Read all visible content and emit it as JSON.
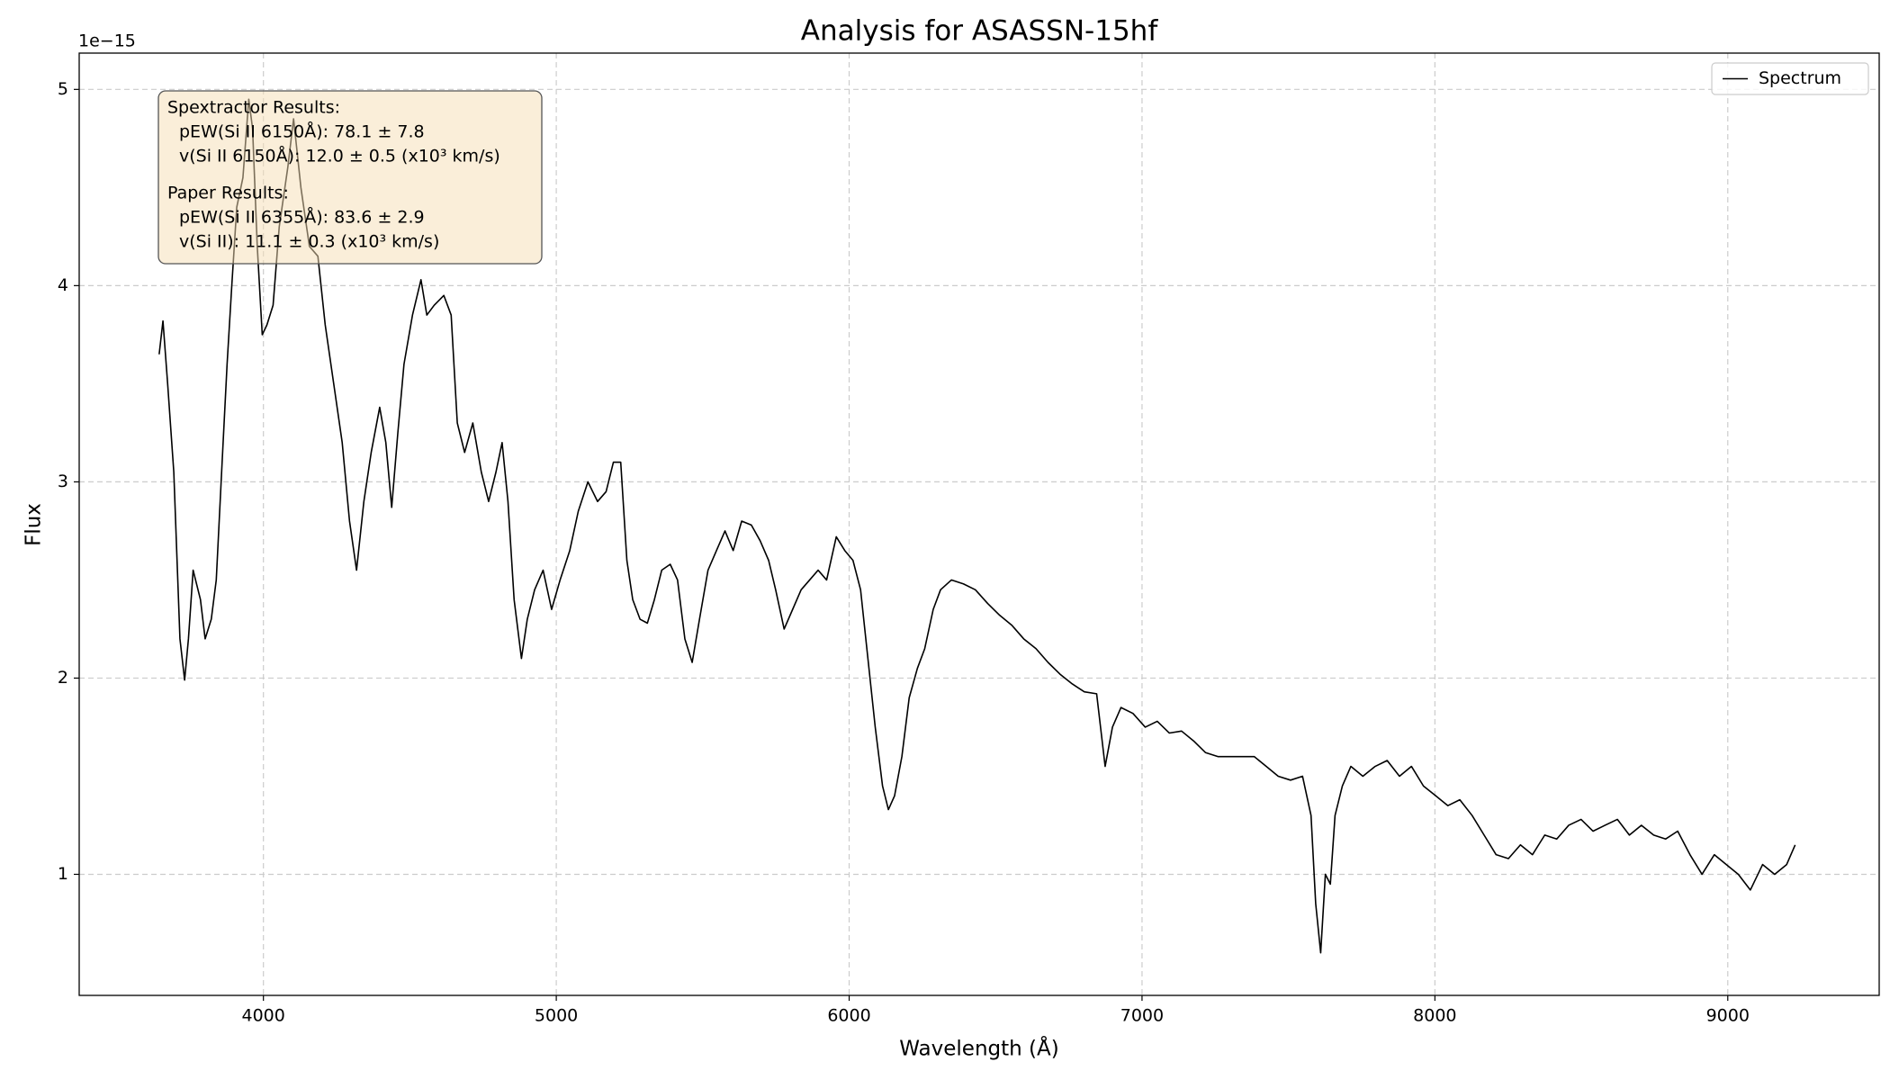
{
  "chart_data": {
    "type": "line",
    "title": "Analysis for ASASSN-15hf",
    "x_label": "Wavelength (Å)",
    "y_label": "Flux",
    "y_offset_label": "1e−15",
    "xlim": [
      3371,
      9517
    ],
    "ylim": [
      0.383,
      5.185
    ],
    "xticks": [
      4000,
      5000,
      6000,
      7000,
      8000,
      9000
    ],
    "yticks": [
      1,
      2,
      3,
      4,
      5
    ],
    "grid": true,
    "legend": "upper right",
    "x": [
      3644,
      3657,
      3673,
      3694,
      3715,
      3731,
      3744,
      3760,
      3785,
      3801,
      3822,
      3839,
      3859,
      3876,
      3892,
      3909,
      3930,
      3950,
      3963,
      3979,
      3996,
      4012,
      4033,
      4054,
      4083,
      4103,
      4128,
      4157,
      4186,
      4211,
      4240,
      4269,
      4294,
      4318,
      4343,
      4368,
      4397,
      4418,
      4438,
      4459,
      4480,
      4509,
      4538,
      4558,
      4583,
      4616,
      4641,
      4662,
      4687,
      4715,
      4744,
      4769,
      4794,
      4815,
      4835,
      4856,
      4881,
      4901,
      4926,
      4955,
      4984,
      5013,
      5046,
      5075,
      5108,
      5141,
      5170,
      5195,
      5220,
      5241,
      5261,
      5286,
      5311,
      5335,
      5360,
      5389,
      5414,
      5439,
      5464,
      5489,
      5518,
      5547,
      5576,
      5604,
      5633,
      5666,
      5696,
      5725,
      5749,
      5778,
      5807,
      5836,
      5865,
      5894,
      5923,
      5956,
      5985,
      6013,
      6039,
      6064,
      6089,
      6114,
      6134,
      6155,
      6180,
      6205,
      6233,
      6258,
      6287,
      6312,
      6349,
      6390,
      6431,
      6473,
      6514,
      6555,
      6596,
      6638,
      6679,
      6720,
      6762,
      6803,
      6845,
      6874,
      6899,
      6928,
      6969,
      7011,
      7052,
      7093,
      7135,
      7176,
      7217,
      7259,
      7300,
      7341,
      7383,
      7424,
      7465,
      7507,
      7548,
      7577,
      7593,
      7610,
      7626,
      7643,
      7659,
      7684,
      7713,
      7754,
      7796,
      7837,
      7879,
      7920,
      7961,
      8003,
      8044,
      8085,
      8127,
      8168,
      8209,
      8251,
      8292,
      8333,
      8375,
      8416,
      8457,
      8499,
      8540,
      8581,
      8623,
      8664,
      8705,
      8747,
      8788,
      8829,
      8871,
      8912,
      8954,
      8995,
      9036,
      9077,
      9119,
      9160,
      9201,
      9230
    ],
    "series": [
      {
        "name": "Spectrum",
        "color": "#000000",
        "values": [
          3.65,
          3.82,
          3.5,
          3.05,
          2.2,
          1.99,
          2.2,
          2.55,
          2.4,
          2.2,
          2.3,
          2.5,
          3.1,
          3.6,
          4.0,
          4.4,
          4.55,
          4.95,
          4.8,
          4.2,
          3.75,
          3.8,
          3.9,
          4.3,
          4.6,
          4.85,
          4.5,
          4.2,
          4.15,
          3.8,
          3.5,
          3.2,
          2.8,
          2.55,
          2.9,
          3.15,
          3.38,
          3.2,
          2.87,
          3.25,
          3.6,
          3.85,
          4.03,
          3.85,
          3.9,
          3.95,
          3.85,
          3.3,
          3.15,
          3.3,
          3.05,
          2.9,
          3.05,
          3.2,
          2.9,
          2.4,
          2.1,
          2.3,
          2.45,
          2.55,
          2.35,
          2.5,
          2.65,
          2.85,
          3.0,
          2.9,
          2.95,
          3.1,
          3.1,
          2.6,
          2.4,
          2.3,
          2.28,
          2.4,
          2.55,
          2.58,
          2.5,
          2.2,
          2.08,
          2.3,
          2.55,
          2.65,
          2.75,
          2.65,
          2.8,
          2.78,
          2.7,
          2.6,
          2.45,
          2.25,
          2.35,
          2.45,
          2.5,
          2.55,
          2.5,
          2.72,
          2.65,
          2.6,
          2.45,
          2.1,
          1.75,
          1.45,
          1.33,
          1.4,
          1.6,
          1.9,
          2.05,
          2.15,
          2.35,
          2.45,
          2.5,
          2.48,
          2.45,
          2.38,
          2.32,
          2.27,
          2.2,
          2.15,
          2.08,
          2.02,
          1.97,
          1.93,
          1.92,
          1.55,
          1.75,
          1.85,
          1.82,
          1.75,
          1.78,
          1.72,
          1.73,
          1.68,
          1.62,
          1.6,
          1.6,
          1.6,
          1.6,
          1.55,
          1.5,
          1.48,
          1.5,
          1.3,
          0.85,
          0.6,
          1.0,
          0.95,
          1.3,
          1.45,
          1.55,
          1.5,
          1.55,
          1.58,
          1.5,
          1.55,
          1.45,
          1.4,
          1.35,
          1.38,
          1.3,
          1.2,
          1.1,
          1.08,
          1.15,
          1.1,
          1.2,
          1.18,
          1.25,
          1.28,
          1.22,
          1.25,
          1.28,
          1.2,
          1.25,
          1.2,
          1.18,
          1.22,
          1.1,
          1.0,
          1.1,
          1.05,
          1.0,
          0.92,
          1.05,
          1.0,
          1.05,
          1.15
        ]
      }
    ],
    "annotation": [
      {
        "heading": "Spextractor Results:",
        "lines": [
          "pEW(Si II 6150Å): 78.1 ± 7.8",
          "v(Si II 6150Å): 12.0 ± 0.5 (x10³ km/s)"
        ]
      },
      {
        "heading": "Paper Results:",
        "lines": [
          "pEW(Si II 6355Å): 83.6 ± 2.9",
          "v(Si II): 11.1 ± 0.3 (x10³ km/s)"
        ]
      }
    ]
  }
}
